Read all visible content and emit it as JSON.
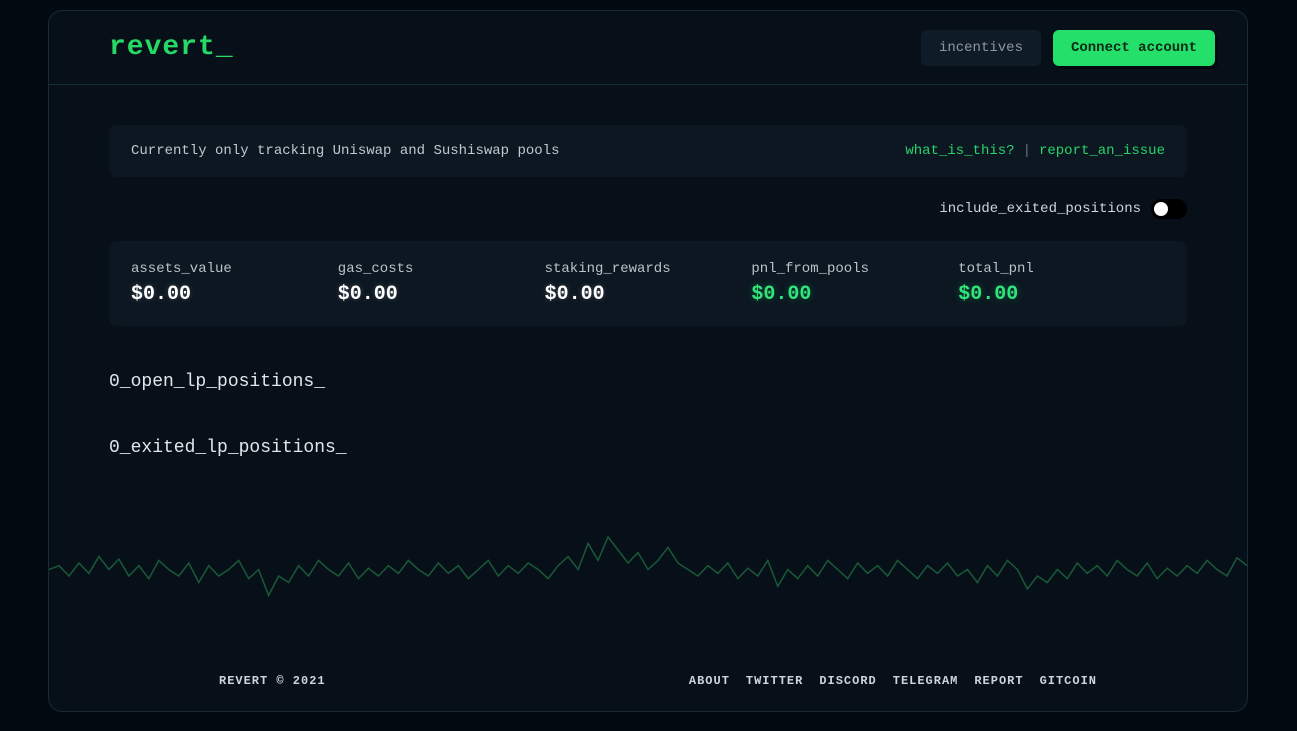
{
  "colors": {
    "accent_green": "#26d964",
    "panel_bg": "#0c1721",
    "frame_bg": "#071019",
    "page_bg": "#020a11",
    "chart_stroke": "#1e6b40"
  },
  "header": {
    "logo": "revert_",
    "incentives_label": "incentives",
    "connect_label": "Connect account"
  },
  "info_bar": {
    "text": "Currently only tracking Uniswap and Sushiswap pools",
    "what_is_this": "what_is_this?",
    "separator": "|",
    "report_issue": "report_an_issue"
  },
  "toggle": {
    "label": "include_exited_positions",
    "on": false
  },
  "stats": {
    "assets_value": {
      "label": "assets_value",
      "value": "$0.00",
      "style": "white"
    },
    "gas_costs": {
      "label": "gas_costs",
      "value": "$0.00",
      "style": "white"
    },
    "staking_rewards": {
      "label": "staking_rewards",
      "value": "$0.00",
      "style": "white"
    },
    "pnl_from_pools": {
      "label": "pnl_from_pools",
      "value": "$0.00",
      "style": "green"
    },
    "total_pnl": {
      "label": "total_pnl",
      "value": "$0.00",
      "style": "green"
    }
  },
  "sections": {
    "open": "0_open_lp_positions_",
    "exited": "0_exited_lp_positions_"
  },
  "chart": {
    "stroke": "#1e6b40",
    "ylim": [
      0,
      100
    ],
    "points": [
      0,
      55,
      10,
      58,
      20,
      50,
      30,
      60,
      40,
      52,
      50,
      65,
      60,
      55,
      70,
      63,
      80,
      50,
      90,
      58,
      100,
      48,
      110,
      62,
      120,
      55,
      130,
      50,
      140,
      60,
      150,
      45,
      160,
      58,
      170,
      50,
      180,
      55,
      190,
      62,
      200,
      48,
      210,
      55,
      220,
      35,
      230,
      50,
      240,
      45,
      250,
      58,
      260,
      50,
      270,
      62,
      280,
      55,
      290,
      50,
      300,
      60,
      310,
      48,
      320,
      56,
      330,
      50,
      340,
      58,
      350,
      52,
      360,
      62,
      370,
      55,
      380,
      50,
      390,
      60,
      400,
      52,
      410,
      58,
      420,
      48,
      430,
      55,
      440,
      62,
      450,
      50,
      460,
      58,
      470,
      52,
      480,
      60,
      490,
      55,
      500,
      48,
      510,
      58,
      520,
      65,
      530,
      55,
      540,
      75,
      550,
      62,
      560,
      80,
      570,
      70,
      580,
      60,
      590,
      68,
      600,
      55,
      610,
      62,
      620,
      72,
      630,
      60,
      640,
      55,
      650,
      50,
      660,
      58,
      670,
      52,
      680,
      60,
      690,
      48,
      700,
      56,
      710,
      50,
      720,
      62,
      730,
      42,
      740,
      55,
      750,
      48,
      760,
      58,
      770,
      50,
      780,
      62,
      790,
      55,
      800,
      48,
      810,
      60,
      820,
      52,
      830,
      58,
      840,
      50,
      850,
      62,
      860,
      55,
      870,
      48,
      880,
      58,
      890,
      52,
      900,
      60,
      910,
      50,
      920,
      55,
      930,
      45,
      940,
      58,
      950,
      50,
      960,
      62,
      970,
      55,
      980,
      40,
      990,
      50,
      1000,
      45,
      1010,
      55,
      1020,
      48,
      1030,
      60,
      1040,
      52,
      1050,
      58,
      1060,
      50,
      1070,
      62,
      1080,
      55,
      1090,
      50,
      1100,
      60,
      1110,
      48,
      1120,
      56,
      1130,
      50,
      1140,
      58,
      1150,
      52,
      1160,
      62,
      1170,
      55,
      1180,
      50,
      1190,
      64,
      1200,
      58
    ]
  },
  "footer": {
    "copyright": "REVERT © 2021",
    "links": {
      "about": "ABOUT",
      "twitter": "TWITTER",
      "discord": "DISCORD",
      "telegram": "TELEGRAM",
      "report": "REPORT",
      "gitcoin": "GITCOIN"
    }
  }
}
